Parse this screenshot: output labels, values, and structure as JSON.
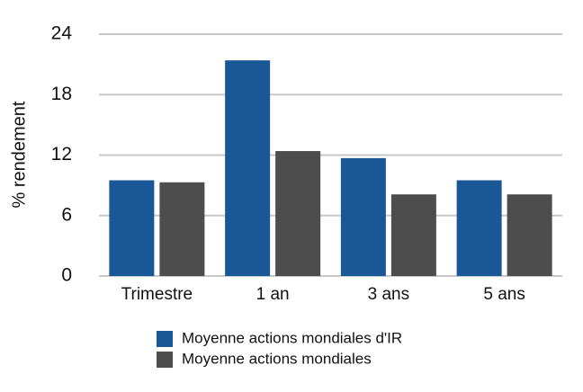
{
  "chart_data": {
    "type": "bar",
    "y_label": "% rendement",
    "categories": [
      "Trimestre",
      "1 an",
      "3 ans",
      "5 ans"
    ],
    "series": [
      {
        "name": "Moyenne actions mondiales d'IR",
        "color": "#1a5796",
        "values": [
          9.5,
          21.4,
          11.7,
          9.5
        ]
      },
      {
        "name": "Moyenne actions mondiales",
        "color": "#4d4d4d",
        "values": [
          9.3,
          12.4,
          8.1,
          8.1
        ]
      }
    ],
    "ylim": [
      0,
      24
    ],
    "yticks": [
      0,
      6,
      12,
      18,
      24
    ],
    "grid": true,
    "legend": "bottom"
  }
}
